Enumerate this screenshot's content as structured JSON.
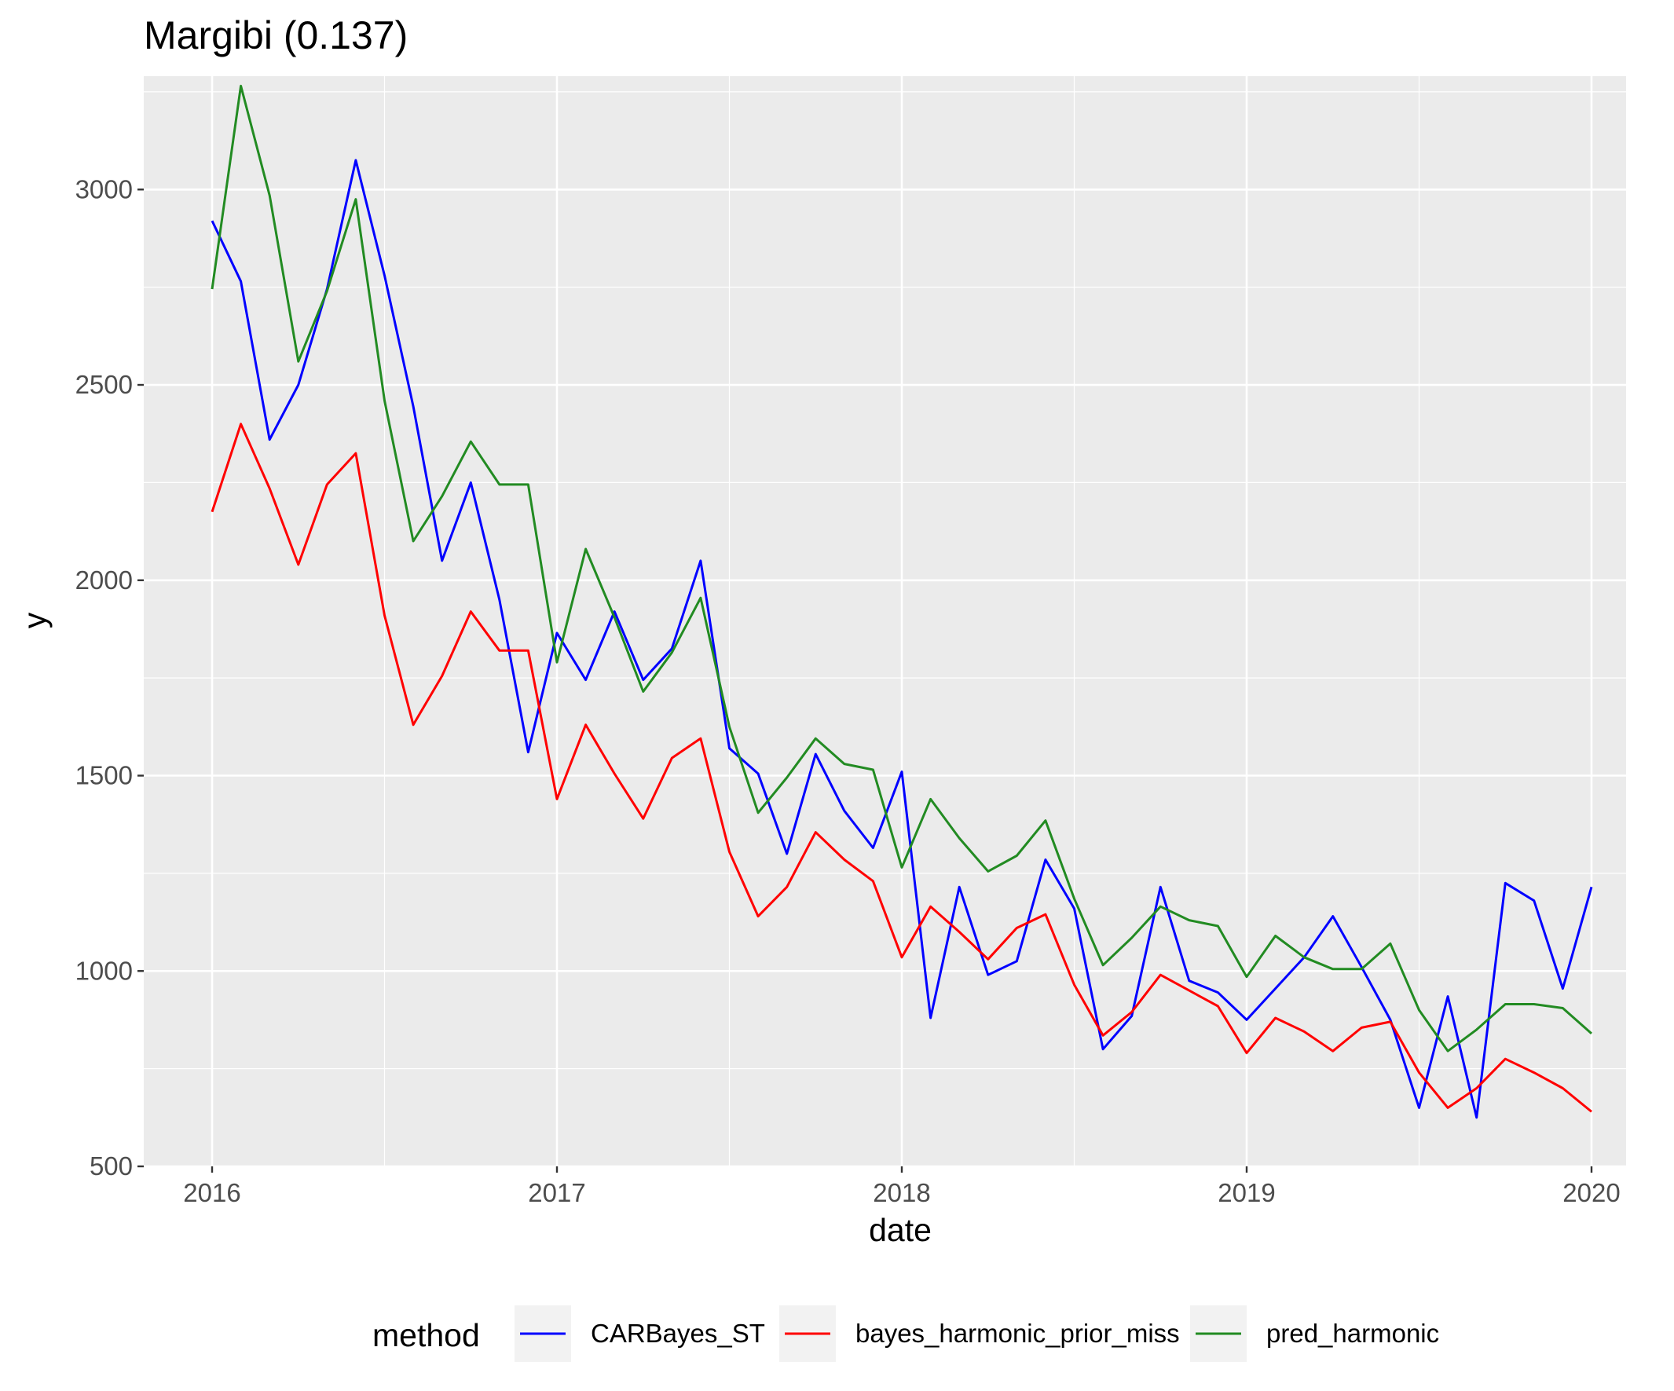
{
  "chart_data": {
    "type": "line",
    "title": "Margibi (0.137)",
    "xlabel": "date",
    "ylabel": "y",
    "xlim": [
      2015.8,
      2020.1
    ],
    "ylim": [
      500,
      3290
    ],
    "x_ticks": [
      2016,
      2017,
      2018,
      2019,
      2020
    ],
    "x_tick_labels": [
      "2016",
      "2017",
      "2018",
      "2019",
      "2020"
    ],
    "y_ticks": [
      500,
      1000,
      1500,
      2000,
      2500,
      3000
    ],
    "y_tick_labels": [
      "500",
      "1000",
      "1500",
      "2000",
      "2500",
      "3000"
    ],
    "grid": true,
    "legend": {
      "title": "method",
      "position": "bottom"
    },
    "x": [
      "2016-01",
      "2016-02",
      "2016-03",
      "2016-04",
      "2016-05",
      "2016-06",
      "2016-07",
      "2016-08",
      "2016-09",
      "2016-10",
      "2016-11",
      "2016-12",
      "2017-01",
      "2017-02",
      "2017-03",
      "2017-04",
      "2017-05",
      "2017-06",
      "2017-07",
      "2017-08",
      "2017-09",
      "2017-10",
      "2017-11",
      "2017-12",
      "2018-01",
      "2018-02",
      "2018-03",
      "2018-04",
      "2018-05",
      "2018-06",
      "2018-07",
      "2018-08",
      "2018-09",
      "2018-10",
      "2018-11",
      "2018-12",
      "2019-01",
      "2019-02",
      "2019-03",
      "2019-04",
      "2019-05",
      "2019-06",
      "2019-07",
      "2019-08",
      "2019-09",
      "2019-10",
      "2019-11",
      "2019-12",
      "2020-01"
    ],
    "series": [
      {
        "name": "CARBayes_ST",
        "color": "#0000ff",
        "values": [
          2920,
          2765,
          2360,
          2500,
          2745,
          3075,
          2780,
          2445,
          2050,
          2250,
          1950,
          1560,
          1865,
          1745,
          1920,
          1745,
          1825,
          2050,
          1570,
          1505,
          1300,
          1555,
          1410,
          1315,
          1510,
          880,
          1215,
          990,
          1025,
          1285,
          1160,
          800,
          885,
          1215,
          975,
          945,
          875,
          955,
          1035,
          1140,
          1010,
          875,
          650,
          935,
          625,
          1225,
          1180,
          955,
          1215
        ]
      },
      {
        "name": "bayes_harmonic_prior_miss",
        "color": "#ff0000",
        "values": [
          2175,
          2400,
          2235,
          2040,
          2245,
          2325,
          1910,
          1630,
          1755,
          1920,
          1820,
          1820,
          1440,
          1630,
          1505,
          1390,
          1545,
          1595,
          1305,
          1140,
          1215,
          1355,
          1285,
          1230,
          1035,
          1165,
          1100,
          1030,
          1110,
          1145,
          965,
          835,
          895,
          990,
          950,
          910,
          790,
          880,
          845,
          795,
          855,
          870,
          740,
          650,
          700,
          775,
          740,
          700,
          640
        ]
      },
      {
        "name": "pred_harmonic",
        "color": "#228b22",
        "values": [
          2745,
          3265,
          2985,
          2560,
          2740,
          2975,
          2460,
          2100,
          2215,
          2355,
          2245,
          2245,
          1790,
          2080,
          1905,
          1715,
          1815,
          1955,
          1625,
          1405,
          1495,
          1595,
          1530,
          1515,
          1265,
          1440,
          1340,
          1255,
          1295,
          1385,
          1185,
          1015,
          1085,
          1165,
          1130,
          1115,
          985,
          1090,
          1035,
          1005,
          1005,
          1070,
          900,
          795,
          850,
          915,
          915,
          905,
          840
        ]
      }
    ]
  }
}
